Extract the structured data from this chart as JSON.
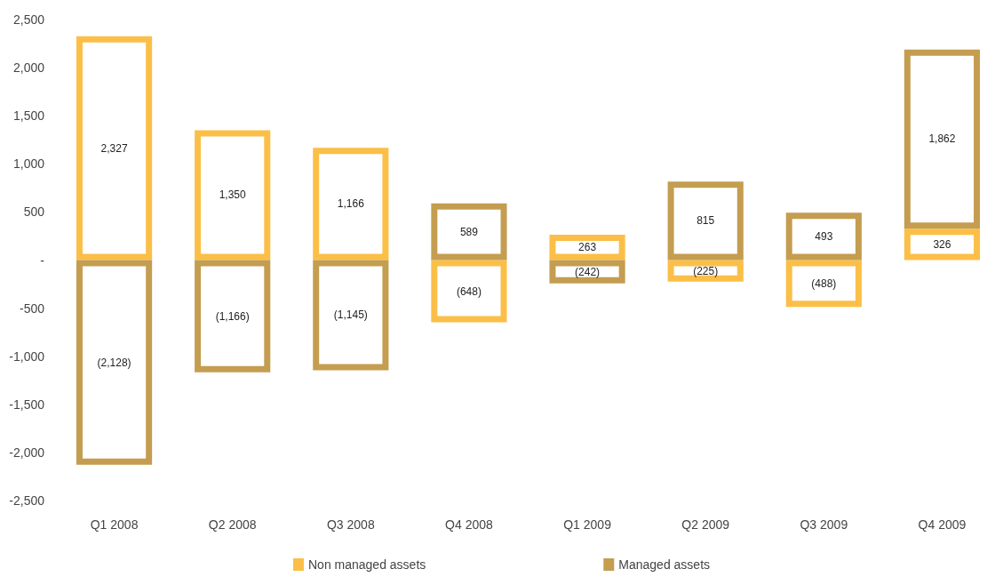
{
  "chart_data": {
    "type": "bar",
    "stacked": true,
    "categories": [
      "Q1 2008",
      "Q2 2008",
      "Q3 2008",
      "Q4 2008",
      "Q1 2009",
      "Q2 2009",
      "Q3 2009",
      "Q4 2009"
    ],
    "series": [
      {
        "name": "Non managed assets",
        "color": "#fbbf48",
        "values": [
          2327,
          1350,
          1166,
          -648,
          263,
          -225,
          -488,
          326
        ],
        "value_labels": [
          "2,327",
          "1,350",
          "1,166",
          "(648)",
          "263",
          "(225)",
          "(488)",
          "326"
        ]
      },
      {
        "name": "Managed assets",
        "color": "#c49d50",
        "values": [
          -2128,
          -1166,
          -1145,
          589,
          -242,
          815,
          493,
          1862
        ],
        "value_labels": [
          "(2,128)",
          "(1,166)",
          "(1,145)",
          "589",
          "(242)",
          "815",
          "493",
          "1,862"
        ]
      }
    ],
    "ylim": [
      -2500,
      2500
    ],
    "yticks": [
      {
        "value": -2500,
        "label": "-2,500"
      },
      {
        "value": -2000,
        "label": "-2,000"
      },
      {
        "value": -1500,
        "label": "-1,500"
      },
      {
        "value": -1000,
        "label": "-1,000"
      },
      -500,
      {
        "value": 0,
        "label": "-"
      },
      500,
      {
        "value": 1000,
        "label": "1,000"
      },
      {
        "value": 1500,
        "label": "1,500"
      },
      {
        "value": 2000,
        "label": "2,000"
      },
      {
        "value": 2500,
        "label": "2,500"
      }
    ],
    "grid": false,
    "legend": "bottom"
  }
}
